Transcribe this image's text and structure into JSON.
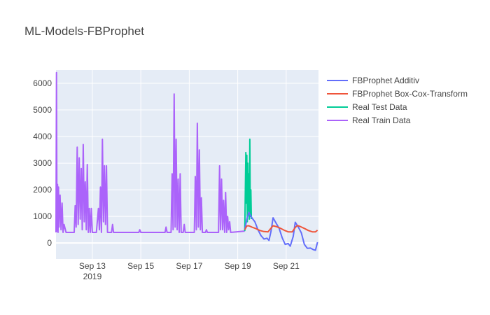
{
  "chart_data": {
    "type": "line",
    "title": "ML-Models-FBProphet",
    "xlabel": "",
    "ylabel": "",
    "x_axis": {
      "type": "date",
      "range": [
        "2019-09-11T12:00",
        "2019-09-22T08:00"
      ],
      "tick_labels": [
        {
          "date": "2019-09-13",
          "label": "Sep 13",
          "sublabel": "2019"
        },
        {
          "date": "2019-09-15",
          "label": "Sep 15",
          "sublabel": ""
        },
        {
          "date": "2019-09-17",
          "label": "Sep 17",
          "sublabel": ""
        },
        {
          "date": "2019-09-19",
          "label": "Sep 19",
          "sublabel": ""
        },
        {
          "date": "2019-09-21",
          "label": "Sep 21",
          "sublabel": ""
        }
      ]
    },
    "y_axis": {
      "range": [
        -600,
        6500
      ],
      "ticks": [
        0,
        1000,
        2000,
        3000,
        4000,
        5000,
        6000
      ],
      "tick_labels": [
        "0",
        "1000",
        "2000",
        "3000",
        "4000",
        "5000",
        "6000"
      ]
    },
    "grid": true,
    "legend_position": "right",
    "series": [
      {
        "name": "FBProphet Additiv",
        "color": "#636efa",
        "points": [
          [
            "2019-09-19T07:00",
            500
          ],
          [
            "2019-09-19T09:00",
            900
          ],
          [
            "2019-09-19T11:00",
            1150
          ],
          [
            "2019-09-19T14:00",
            950
          ],
          [
            "2019-09-19T17:00",
            800
          ],
          [
            "2019-09-19T20:00",
            500
          ],
          [
            "2019-09-19T23:00",
            280
          ],
          [
            "2019-09-20T02:00",
            150
          ],
          [
            "2019-09-20T05:00",
            180
          ],
          [
            "2019-09-20T07:00",
            100
          ],
          [
            "2019-09-20T09:00",
            450
          ],
          [
            "2019-09-20T11:00",
            950
          ],
          [
            "2019-09-20T14:00",
            750
          ],
          [
            "2019-09-20T17:00",
            550
          ],
          [
            "2019-09-20T20:00",
            200
          ],
          [
            "2019-09-20T23:00",
            -50
          ],
          [
            "2019-09-21T02:00",
            -20
          ],
          [
            "2019-09-21T04:00",
            -120
          ],
          [
            "2019-09-21T07:00",
            250
          ],
          [
            "2019-09-21T09:00",
            780
          ],
          [
            "2019-09-21T12:00",
            600
          ],
          [
            "2019-09-21T15:00",
            380
          ],
          [
            "2019-09-21T18:00",
            -50
          ],
          [
            "2019-09-21T21:00",
            -200
          ],
          [
            "2019-09-22T00:00",
            -190
          ],
          [
            "2019-09-22T03:00",
            -250
          ],
          [
            "2019-09-22T05:00",
            -270
          ],
          [
            "2019-09-22T07:00",
            30
          ]
        ]
      },
      {
        "name": "FBProphet Box-Cox-Transform",
        "color": "#ef553b",
        "points": [
          [
            "2019-09-19T07:00",
            500
          ],
          [
            "2019-09-19T09:00",
            640
          ],
          [
            "2019-09-19T11:00",
            650
          ],
          [
            "2019-09-19T14:00",
            600
          ],
          [
            "2019-09-19T18:00",
            540
          ],
          [
            "2019-09-19T22:00",
            470
          ],
          [
            "2019-09-20T02:00",
            430
          ],
          [
            "2019-09-20T06:00",
            420
          ],
          [
            "2019-09-20T09:00",
            560
          ],
          [
            "2019-09-20T11:00",
            650
          ],
          [
            "2019-09-20T14:00",
            620
          ],
          [
            "2019-09-20T18:00",
            560
          ],
          [
            "2019-09-20T22:00",
            480
          ],
          [
            "2019-09-21T02:00",
            420
          ],
          [
            "2019-09-21T06:00",
            420
          ],
          [
            "2019-09-21T09:00",
            580
          ],
          [
            "2019-09-21T11:00",
            660
          ],
          [
            "2019-09-21T14:00",
            620
          ],
          [
            "2019-09-21T18:00",
            550
          ],
          [
            "2019-09-21T22:00",
            470
          ],
          [
            "2019-09-22T02:00",
            420
          ],
          [
            "2019-09-22T05:00",
            420
          ],
          [
            "2019-09-22T07:00",
            480
          ]
        ]
      },
      {
        "name": "Real Test Data",
        "color": "#00cc96",
        "points": [
          [
            "2019-09-19T07:00",
            450
          ],
          [
            "2019-09-19T08:00",
            3400
          ],
          [
            "2019-09-19T08:30",
            1500
          ],
          [
            "2019-09-19T09:00",
            3300
          ],
          [
            "2019-09-19T09:30",
            800
          ],
          [
            "2019-09-19T10:00",
            3000
          ],
          [
            "2019-09-19T10:30",
            1200
          ],
          [
            "2019-09-19T11:00",
            2600
          ],
          [
            "2019-09-19T11:30",
            900
          ],
          [
            "2019-09-19T12:00",
            3900
          ],
          [
            "2019-09-19T12:30",
            1000
          ],
          [
            "2019-09-19T13:00",
            2000
          ],
          [
            "2019-09-19T13:30",
            900
          ]
        ]
      },
      {
        "name": "Real Train Data",
        "color": "#ab63fa",
        "points": [
          [
            "2019-09-11T12:00",
            400
          ],
          [
            "2019-09-11T12:30",
            6400
          ],
          [
            "2019-09-11T13:00",
            450
          ],
          [
            "2019-09-11T13:30",
            2200
          ],
          [
            "2019-09-11T14:00",
            400
          ],
          [
            "2019-09-11T14:30",
            2100
          ],
          [
            "2019-09-11T15:00",
            600
          ],
          [
            "2019-09-11T16:00",
            1800
          ],
          [
            "2019-09-11T17:00",
            500
          ],
          [
            "2019-09-11T18:00",
            1500
          ],
          [
            "2019-09-11T19:00",
            400
          ],
          [
            "2019-09-11T20:00",
            700
          ],
          [
            "2019-09-11T22:00",
            400
          ],
          [
            "2019-09-12T06:00",
            400
          ],
          [
            "2019-09-12T07:00",
            1400
          ],
          [
            "2019-09-12T08:00",
            600
          ],
          [
            "2019-09-12T09:00",
            3600
          ],
          [
            "2019-09-12T10:00",
            700
          ],
          [
            "2019-09-12T11:00",
            3200
          ],
          [
            "2019-09-12T12:00",
            900
          ],
          [
            "2019-09-12T13:00",
            2800
          ],
          [
            "2019-09-12T14:00",
            500
          ],
          [
            "2019-09-12T15:00",
            3700
          ],
          [
            "2019-09-12T16:00",
            800
          ],
          [
            "2019-09-12T17:00",
            2300
          ],
          [
            "2019-09-12T18:00",
            500
          ],
          [
            "2019-09-12T19:00",
            2950
          ],
          [
            "2019-09-12T20:00",
            400
          ],
          [
            "2019-09-12T21:00",
            1300
          ],
          [
            "2019-09-12T22:00",
            400
          ],
          [
            "2019-09-12T23:00",
            1300
          ],
          [
            "2019-09-13T00:00",
            400
          ],
          [
            "2019-09-13T04:00",
            400
          ],
          [
            "2019-09-13T06:00",
            1300
          ],
          [
            "2019-09-13T07:00",
            500
          ],
          [
            "2019-09-13T08:00",
            2100
          ],
          [
            "2019-09-13T09:00",
            400
          ],
          [
            "2019-09-13T10:00",
            3900
          ],
          [
            "2019-09-13T11:00",
            800
          ],
          [
            "2019-09-13T12:00",
            2900
          ],
          [
            "2019-09-13T13:00",
            700
          ],
          [
            "2019-09-13T14:00",
            2900
          ],
          [
            "2019-09-13T15:00",
            400
          ],
          [
            "2019-09-13T19:00",
            400
          ],
          [
            "2019-09-13T20:00",
            700
          ],
          [
            "2019-09-13T21:00",
            400
          ],
          [
            "2019-09-14T22:00",
            400
          ],
          [
            "2019-09-14T23:00",
            500
          ],
          [
            "2019-09-15T00:00",
            400
          ],
          [
            "2019-09-16T00:00",
            400
          ],
          [
            "2019-09-16T01:00",
            600
          ],
          [
            "2019-09-16T02:00",
            400
          ],
          [
            "2019-09-16T06:00",
            400
          ],
          [
            "2019-09-16T07:00",
            2600
          ],
          [
            "2019-09-16T08:00",
            500
          ],
          [
            "2019-09-16T09:00",
            5600
          ],
          [
            "2019-09-16T10:00",
            600
          ],
          [
            "2019-09-16T11:00",
            3900
          ],
          [
            "2019-09-16T12:00",
            500
          ],
          [
            "2019-09-16T13:00",
            2400
          ],
          [
            "2019-09-16T14:00",
            400
          ],
          [
            "2019-09-16T15:00",
            2600
          ],
          [
            "2019-09-16T16:00",
            400
          ],
          [
            "2019-09-16T18:00",
            400
          ],
          [
            "2019-09-16T19:00",
            700
          ],
          [
            "2019-09-16T20:00",
            400
          ],
          [
            "2019-09-17T05:00",
            400
          ],
          [
            "2019-09-17T06:00",
            2500
          ],
          [
            "2019-09-17T07:00",
            500
          ],
          [
            "2019-09-17T08:00",
            4500
          ],
          [
            "2019-09-17T09:00",
            600
          ],
          [
            "2019-09-17T10:00",
            3500
          ],
          [
            "2019-09-17T11:00",
            500
          ],
          [
            "2019-09-17T12:00",
            1700
          ],
          [
            "2019-09-17T13:00",
            400
          ],
          [
            "2019-09-17T16:00",
            400
          ],
          [
            "2019-09-17T17:00",
            500
          ],
          [
            "2019-09-17T18:00",
            400
          ],
          [
            "2019-09-18T05:00",
            400
          ],
          [
            "2019-09-18T06:00",
            2900
          ],
          [
            "2019-09-18T07:00",
            500
          ],
          [
            "2019-09-18T08:00",
            2400
          ],
          [
            "2019-09-18T09:00",
            500
          ],
          [
            "2019-09-18T10:00",
            1600
          ],
          [
            "2019-09-18T11:00",
            400
          ],
          [
            "2019-09-18T12:00",
            1900
          ],
          [
            "2019-09-18T13:00",
            400
          ],
          [
            "2019-09-18T14:00",
            1000
          ],
          [
            "2019-09-18T15:00",
            500
          ],
          [
            "2019-09-18T16:00",
            800
          ],
          [
            "2019-09-18T17:00",
            400
          ],
          [
            "2019-09-19T07:00",
            450
          ]
        ]
      }
    ]
  }
}
